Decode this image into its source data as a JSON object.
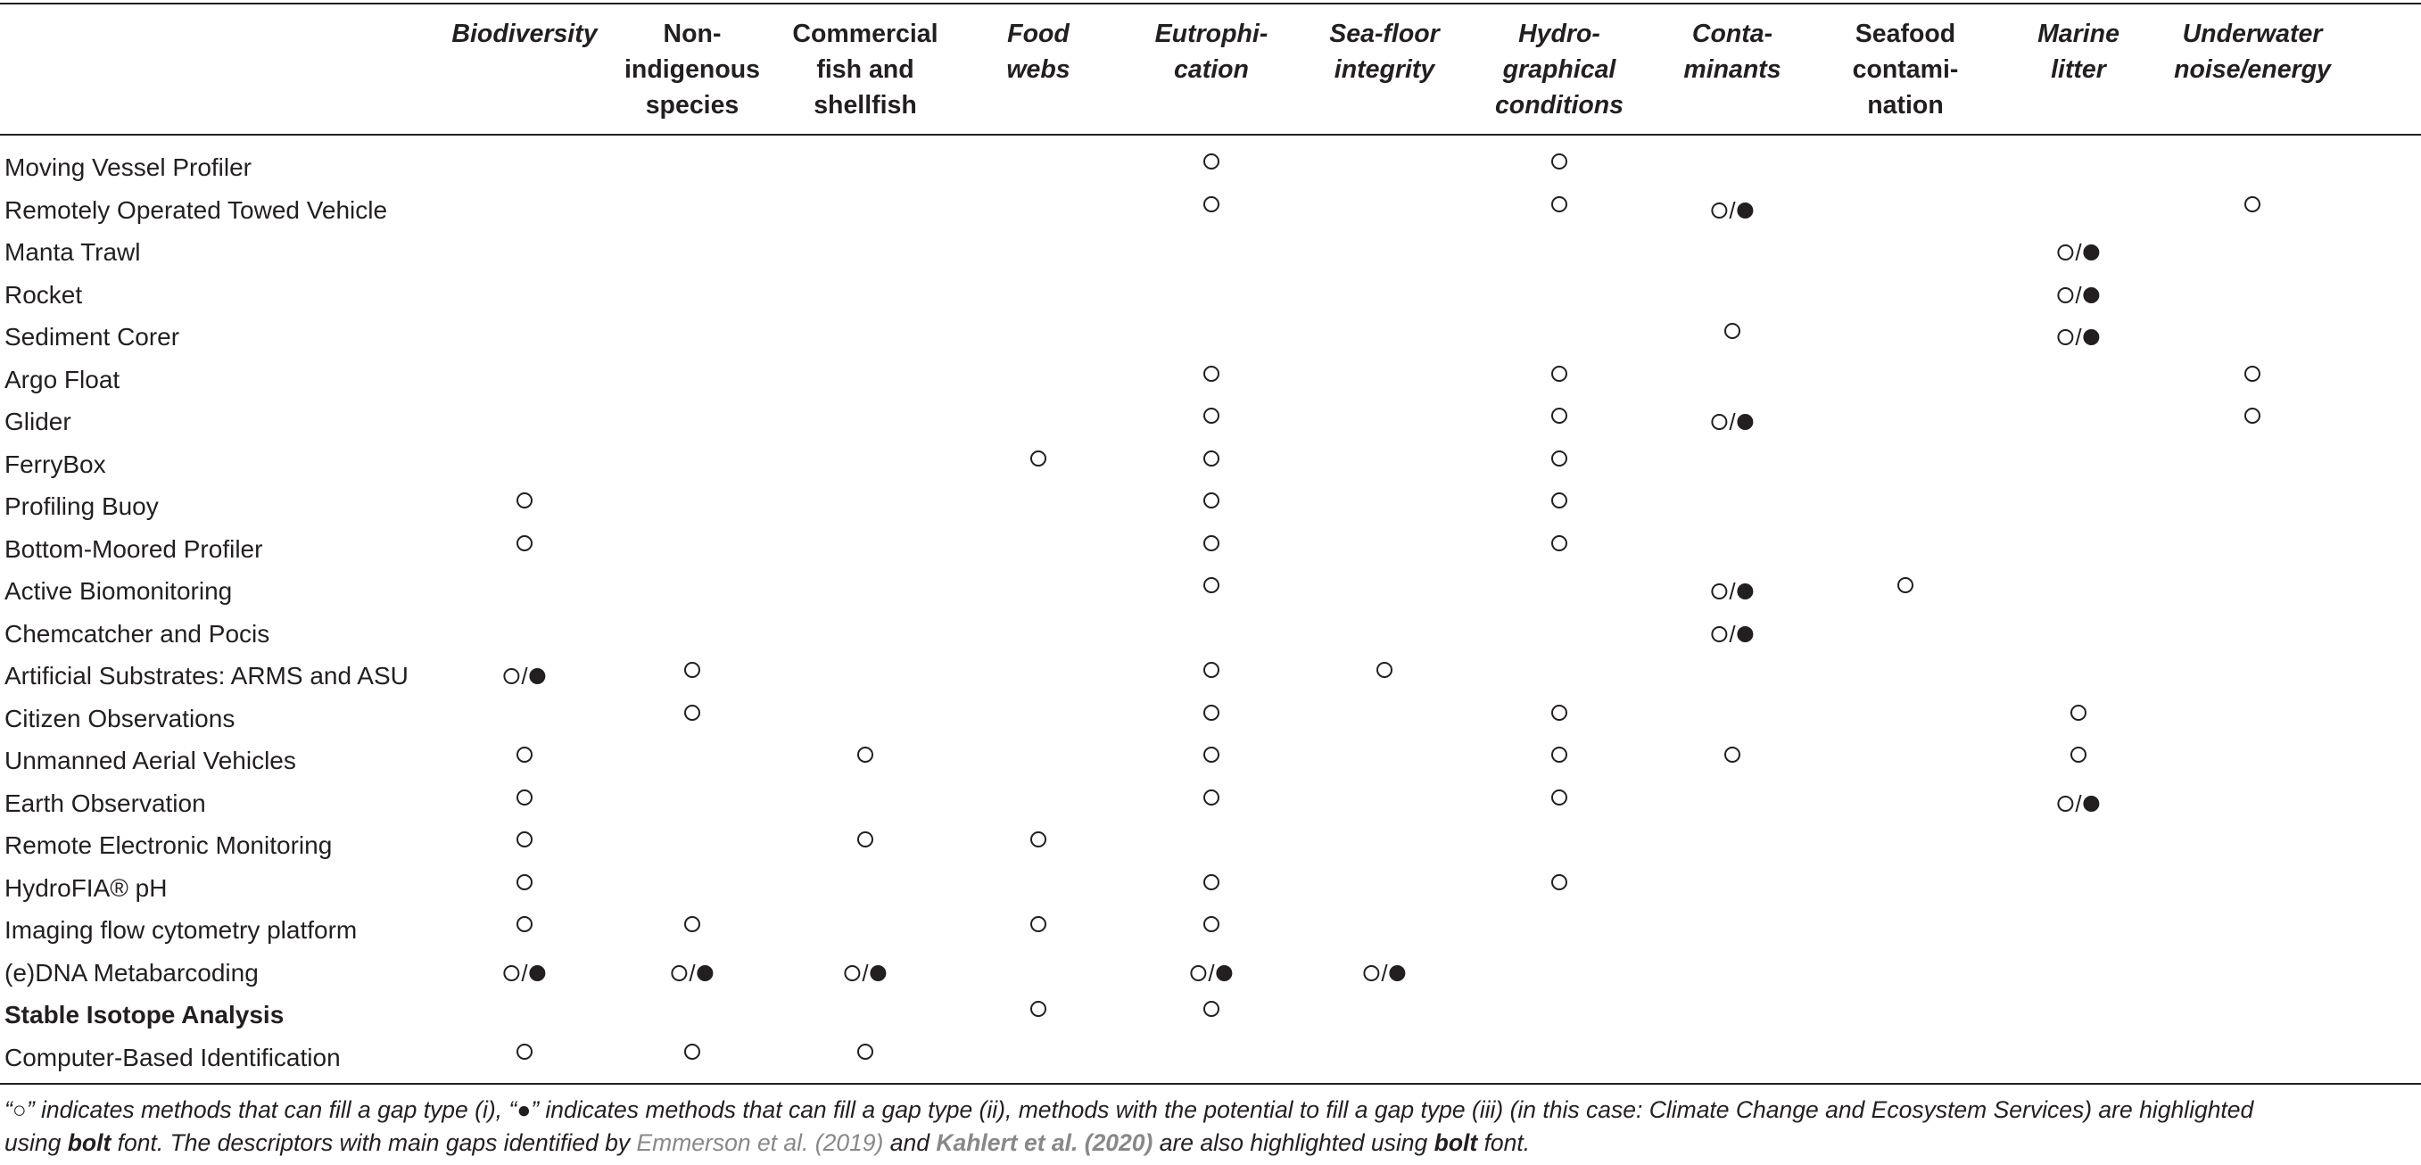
{
  "columns": [
    {
      "lines": [
        "Biodiversity"
      ],
      "italic": true
    },
    {
      "lines": [
        "Non-",
        "indigenous",
        "species"
      ],
      "italic": false
    },
    {
      "lines": [
        "Commercial",
        "fish and",
        "shellfish"
      ],
      "italic": false
    },
    {
      "lines": [
        "Food",
        "webs"
      ],
      "italic": true
    },
    {
      "lines": [
        "Eutrophi-",
        "cation"
      ],
      "italic": true
    },
    {
      "lines": [
        "Sea-floor",
        "integrity"
      ],
      "italic": true
    },
    {
      "lines": [
        "Hydro-",
        "graphical",
        "conditions"
      ],
      "italic": true
    },
    {
      "lines": [
        "Conta-",
        "minants"
      ],
      "italic": true
    },
    {
      "lines": [
        "Seafood",
        "contami-",
        "nation"
      ],
      "italic": false
    },
    {
      "lines": [
        "Marine",
        "litter"
      ],
      "italic": true
    },
    {
      "lines": [
        "Underwater",
        "noise/energy"
      ],
      "italic": true
    }
  ],
  "rows": [
    {
      "label": "Moving Vessel Profiler",
      "bold": false,
      "cells": [
        "",
        "",
        "",
        "",
        "o",
        "",
        "o",
        "",
        "",
        "",
        ""
      ]
    },
    {
      "label": "Remotely Operated Towed Vehicle",
      "bold": false,
      "cells": [
        "",
        "",
        "",
        "",
        "o",
        "",
        "o",
        "o/●",
        "",
        "",
        "o"
      ]
    },
    {
      "label": "Manta Trawl",
      "bold": false,
      "cells": [
        "",
        "",
        "",
        "",
        "",
        "",
        "",
        "",
        "",
        "o/●",
        ""
      ]
    },
    {
      "label": "Rocket",
      "bold": false,
      "cells": [
        "",
        "",
        "",
        "",
        "",
        "",
        "",
        "",
        "",
        "o/●",
        ""
      ]
    },
    {
      "label": "Sediment Corer",
      "bold": false,
      "cells": [
        "",
        "",
        "",
        "",
        "",
        "",
        "",
        "o",
        "",
        "o/●",
        ""
      ]
    },
    {
      "label": "Argo Float",
      "bold": false,
      "cells": [
        "",
        "",
        "",
        "",
        "o",
        "",
        "o",
        "",
        "",
        "",
        "o"
      ]
    },
    {
      "label": "Glider",
      "bold": false,
      "cells": [
        "",
        "",
        "",
        "",
        "o",
        "",
        "o",
        "o/●",
        "",
        "",
        "o"
      ]
    },
    {
      "label": "FerryBox",
      "bold": false,
      "cells": [
        "",
        "",
        "",
        "o",
        "o",
        "",
        "o",
        "",
        "",
        "",
        ""
      ]
    },
    {
      "label": "Profiling Buoy",
      "bold": false,
      "cells": [
        "o",
        "",
        "",
        "",
        "o",
        "",
        "o",
        "",
        "",
        "",
        ""
      ]
    },
    {
      "label": "Bottom-Moored Profiler",
      "bold": false,
      "cells": [
        "o",
        "",
        "",
        "",
        "o",
        "",
        "o",
        "",
        "",
        "",
        ""
      ]
    },
    {
      "label": "Active Biomonitoring",
      "bold": false,
      "cells": [
        "",
        "",
        "",
        "",
        "o",
        "",
        "",
        "o/●",
        "o",
        "",
        ""
      ]
    },
    {
      "label": "Chemcatcher and Pocis",
      "bold": false,
      "cells": [
        "",
        "",
        "",
        "",
        "",
        "",
        "",
        "o/●",
        "",
        "",
        ""
      ]
    },
    {
      "label": "Artificial Substrates: ARMS and ASU",
      "bold": false,
      "cells": [
        "o/●",
        "o",
        "",
        "",
        "o",
        "o",
        "",
        "",
        "",
        "",
        ""
      ]
    },
    {
      "label": "Citizen Observations",
      "bold": false,
      "cells": [
        "",
        "o",
        "",
        "",
        "o",
        "",
        "o",
        "",
        "",
        "o",
        ""
      ]
    },
    {
      "label": "Unmanned Aerial Vehicles",
      "bold": false,
      "cells": [
        "o",
        "",
        "o",
        "",
        "o",
        "",
        "o",
        "o",
        "",
        "o",
        ""
      ]
    },
    {
      "label": "Earth Observation",
      "bold": false,
      "cells": [
        "o",
        "",
        "",
        "",
        "o",
        "",
        "o",
        "",
        "",
        "o/●",
        ""
      ]
    },
    {
      "label": "Remote Electronic Monitoring",
      "bold": false,
      "cells": [
        "o",
        "",
        "o",
        "o",
        "",
        "",
        "",
        "",
        "",
        "",
        ""
      ]
    },
    {
      "label": "HydroFIA® pH",
      "bold": false,
      "cells": [
        "o",
        "",
        "",
        "",
        "o",
        "",
        "o",
        "",
        "",
        "",
        ""
      ]
    },
    {
      "label": "Imaging flow cytometry platform",
      "bold": false,
      "cells": [
        "o",
        "o",
        "",
        "o",
        "o",
        "",
        "",
        "",
        "",
        "",
        ""
      ]
    },
    {
      "label": "(e)DNA Metabarcoding",
      "bold": false,
      "cells": [
        "o/●",
        "o/●",
        "o/●",
        "",
        "o/●",
        "o/●",
        "",
        "",
        "",
        "",
        ""
      ]
    },
    {
      "label": "Stable Isotope Analysis",
      "bold": true,
      "cells": [
        "",
        "",
        "",
        "o",
        "o",
        "",
        "",
        "",
        "",
        "",
        ""
      ]
    },
    {
      "label": "Computer-Based Identification",
      "bold": false,
      "cells": [
        "o",
        "o",
        "o",
        "",
        "",
        "",
        "",
        "",
        "",
        "",
        ""
      ]
    }
  ],
  "footnote": {
    "p1": "“○” indicates methods that can fill a gap type (i), “●” indicates methods that can fill a gap type (ii), methods with the potential to fill a gap type (iii) (in this case: Climate Change and Ecosystem Services) are highlighted",
    "p2a": "using ",
    "p2b": "bolt",
    "p2c": " font. The descriptors with main gaps identified by ",
    "ref1": "Emmerson et al. (2019)",
    "p2d": " and ",
    "ref2": "Kahlert et al. (2020)",
    "p2e": " are also highlighted using ",
    "p2f": "bolt",
    "p2g": " font."
  }
}
